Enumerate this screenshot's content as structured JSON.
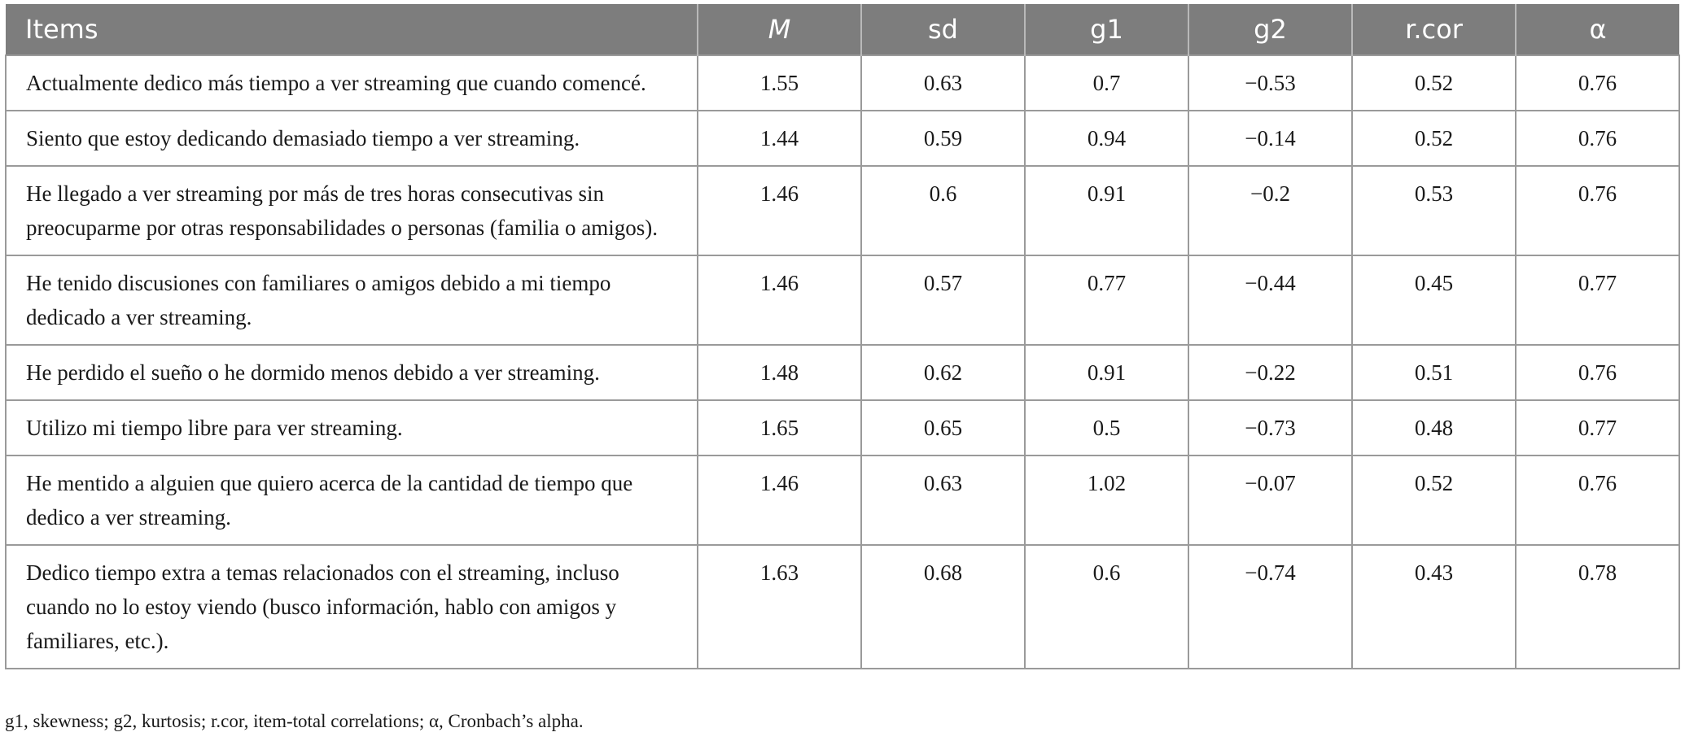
{
  "headers": [
    "Items",
    "M",
    "sd",
    "g1",
    "g2",
    "r.cor",
    "α"
  ],
  "rows": [
    {
      "item": "Actualmente dedico más tiempo a ver streaming que cuando comencé.",
      "M": "1.55",
      "sd": "0.63",
      "g1": "0.7",
      "g2": "−0.53",
      "rcor": "0.52",
      "alpha": "0.76"
    },
    {
      "item": "Siento que estoy dedicando demasiado tiempo a ver streaming.",
      "M": "1.44",
      "sd": "0.59",
      "g1": "0.94",
      "g2": "−0.14",
      "rcor": "0.52",
      "alpha": "0.76"
    },
    {
      "item": "He llegado a ver streaming por más de tres horas consecutivas sin preocuparme por otras responsabilidades o personas (familia o amigos).",
      "M": "1.46",
      "sd": "0.6",
      "g1": "0.91",
      "g2": "−0.2",
      "rcor": "0.53",
      "alpha": "0.76"
    },
    {
      "item": "He tenido discusiones con familiares o amigos debido a mi tiempo dedicado a ver streaming.",
      "M": "1.46",
      "sd": "0.57",
      "g1": "0.77",
      "g2": "−0.44",
      "rcor": "0.45",
      "alpha": "0.77"
    },
    {
      "item": "He perdido el sueño o he dormido menos debido a ver streaming.",
      "M": "1.48",
      "sd": "0.62",
      "g1": "0.91",
      "g2": "−0.22",
      "rcor": "0.51",
      "alpha": "0.76"
    },
    {
      "item": "Utilizo mi tiempo libre para ver streaming.",
      "M": "1.65",
      "sd": "0.65",
      "g1": "0.5",
      "g2": "−0.73",
      "rcor": "0.48",
      "alpha": "0.77"
    },
    {
      "item": "He mentido a alguien que quiero acerca de la cantidad de tiempo que dedico a ver streaming.",
      "M": "1.46",
      "sd": "0.63",
      "g1": "1.02",
      "g2": "−0.07",
      "rcor": "0.52",
      "alpha": "0.76"
    },
    {
      "item": "Dedico tiempo extra a temas relacionados con el streaming, incluso cuando no lo estoy viendo (busco información, hablo con amigos y familiares, etc.).",
      "M": "1.63",
      "sd": "0.68",
      "g1": "0.6",
      "g2": "−0.74",
      "rcor": "0.43",
      "alpha": "0.78"
    }
  ],
  "footnote": "g1, skewness; g2, kurtosis; r.cor, item-total correlations; α, Cronbach’s alpha."
}
